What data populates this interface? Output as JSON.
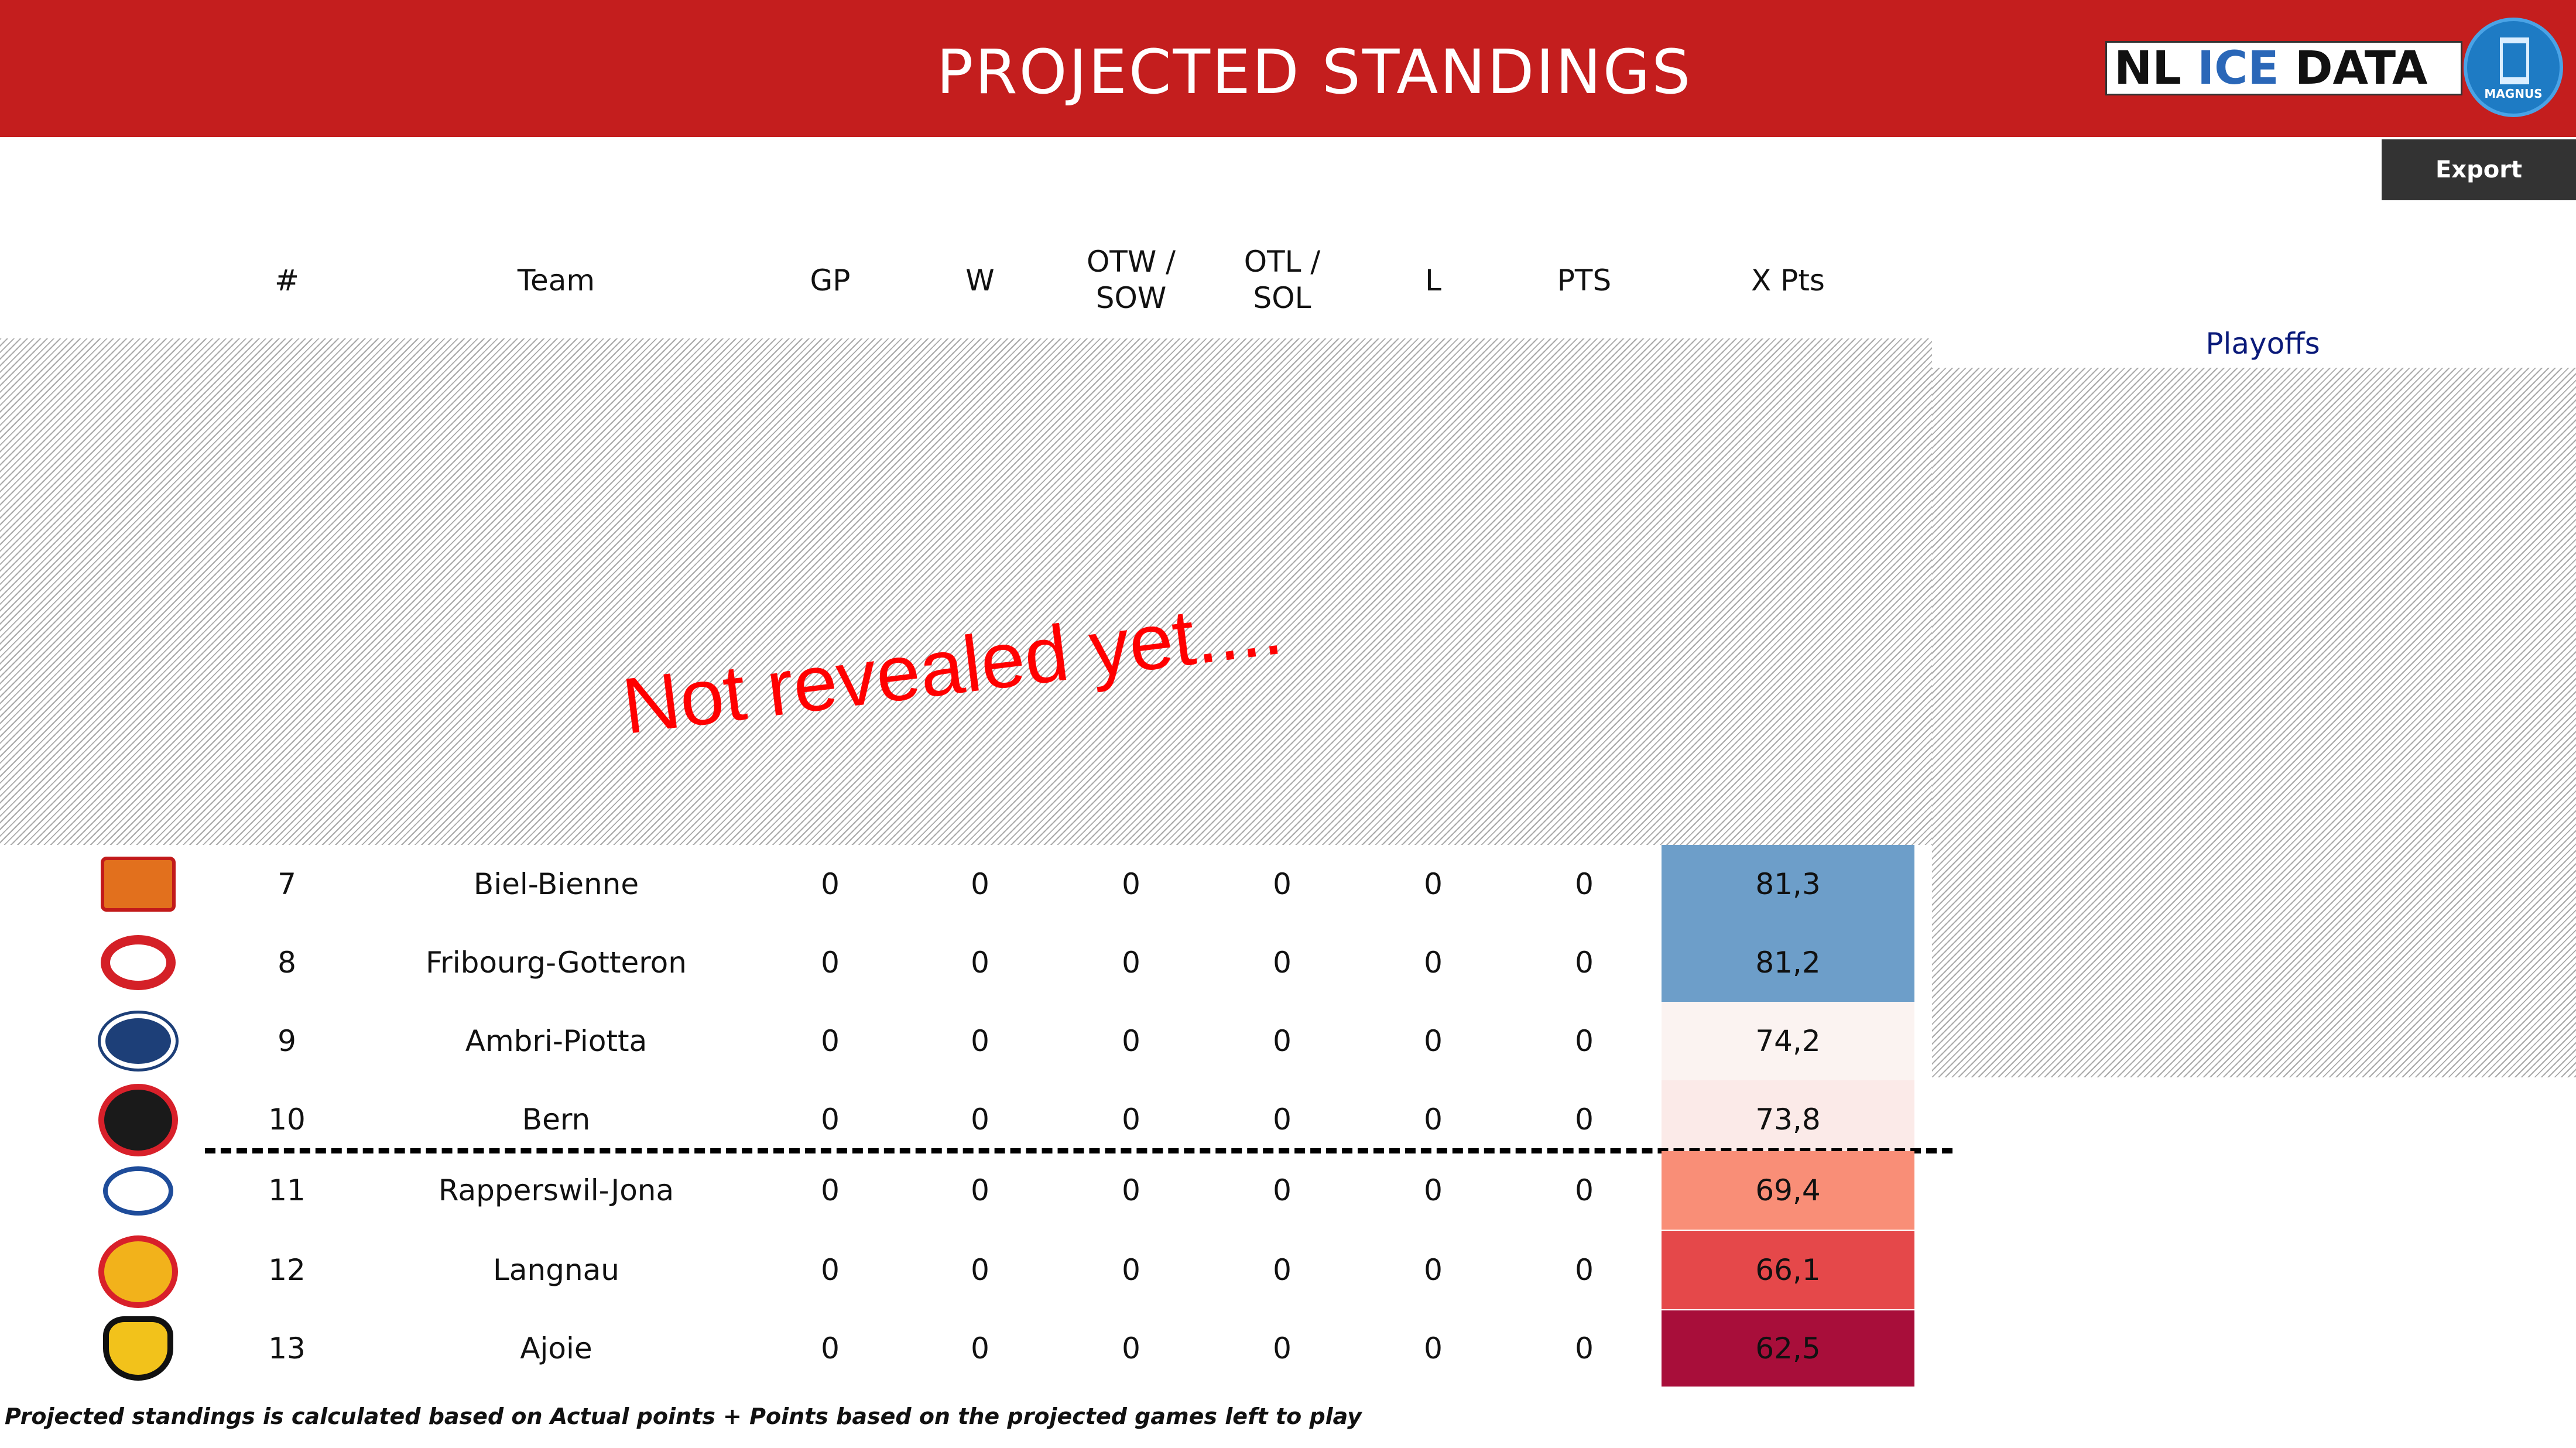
{
  "header": {
    "title": "PROJECTED STANDINGS",
    "logo_text_1": "NL",
    "logo_text_2": "ICE",
    "logo_text_3": "DATA",
    "logo_badge": "MAGNUS"
  },
  "toolbar": {
    "export_label": "Export"
  },
  "columns": {
    "rank": "#",
    "team": "Team",
    "gp": "GP",
    "w": "W",
    "otw": "OTW /\nSOW",
    "otl": "OTL /\nSOL",
    "l": "L",
    "pts": "PTS",
    "xpts": "X Pts"
  },
  "overlay": {
    "hidden_message": "Not revealed yet....",
    "playoffs_label": "Playoffs"
  },
  "rows": [
    {
      "rank": "7",
      "team": "Biel-Bienne",
      "gp": "0",
      "w": "0",
      "otw": "0",
      "otl": "0",
      "l": "0",
      "pts": "0",
      "xpts": "81,3",
      "xcolor": "#6d9ec9",
      "logo": "ehc-biel-logo"
    },
    {
      "rank": "8",
      "team": "Fribourg-Gotteron",
      "gp": "0",
      "w": "0",
      "otw": "0",
      "otl": "0",
      "l": "0",
      "pts": "0",
      "xpts": "81,2",
      "xcolor": "#6d9ec9",
      "logo": "hc-fribourg-gotteron-logo"
    },
    {
      "rank": "9",
      "team": "Ambri-Piotta",
      "gp": "0",
      "w": "0",
      "otw": "0",
      "otl": "0",
      "l": "0",
      "pts": "0",
      "xpts": "74,2",
      "xcolor": "#fbf3f1",
      "logo": "hc-ambri-piotta-logo"
    },
    {
      "rank": "10",
      "team": "Bern",
      "gp": "0",
      "w": "0",
      "otw": "0",
      "otl": "0",
      "l": "0",
      "pts": "0",
      "xpts": "73,8",
      "xcolor": "#fbeae8",
      "logo": "sc-bern-logo"
    },
    {
      "rank": "11",
      "team": "Rapperswil-Jona",
      "gp": "0",
      "w": "0",
      "otw": "0",
      "otl": "0",
      "l": "0",
      "pts": "0",
      "xpts": "69,4",
      "xcolor": "#f98e77",
      "logo": "rapperswil-jona-lakers-logo"
    },
    {
      "rank": "12",
      "team": "Langnau",
      "gp": "0",
      "w": "0",
      "otw": "0",
      "otl": "0",
      "l": "0",
      "pts": "0",
      "xpts": "66,1",
      "xcolor": "#e5484a",
      "logo": "scl-tigers-logo"
    },
    {
      "rank": "13",
      "team": "Ajoie",
      "gp": "0",
      "w": "0",
      "otw": "0",
      "otl": "0",
      "l": "0",
      "pts": "0",
      "xpts": "62,5",
      "xcolor": "#a80e3a",
      "logo": "hc-ajoie-logo"
    }
  ],
  "footnote": "Projected standings is calculated based on Actual points + Points based on the projected games left to play"
}
